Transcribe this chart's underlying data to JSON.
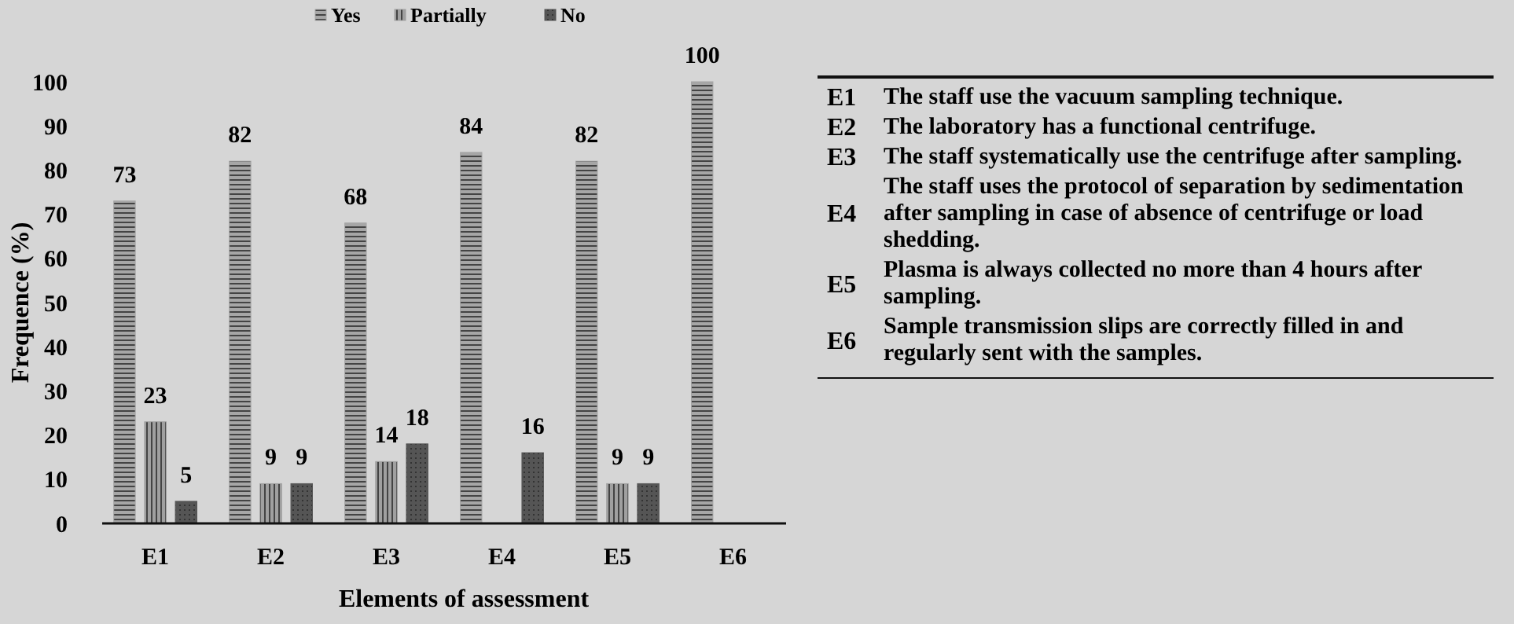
{
  "chart_data": {
    "type": "bar",
    "xlabel": "Elements of assessment",
    "ylabel": "Frequence (%)",
    "categories": [
      "E1",
      "E2",
      "E3",
      "E4",
      "E5",
      "E6"
    ],
    "series": [
      {
        "name": "Yes",
        "color": "#a6a6a6",
        "values": [
          73,
          82,
          68,
          84,
          82,
          100
        ]
      },
      {
        "name": "Partially",
        "color": "#a0a0a0",
        "values": [
          23,
          9,
          14,
          null,
          9,
          null
        ]
      },
      {
        "name": "No",
        "color": "#555555",
        "values": [
          5,
          9,
          18,
          16,
          9,
          null
        ]
      }
    ],
    "ylim": [
      0,
      100
    ],
    "yticks": [
      0,
      10,
      20,
      30,
      40,
      50,
      60,
      70,
      80,
      90,
      100
    ],
    "data_labels": true,
    "legend": "top",
    "grid": false,
    "annotations": [
      "The staff use the vacuum sampling technique.",
      "The laboratory has a functional centrifuge.",
      "The staff systematically use the centrifuge after sampling.",
      "The staff uses the protocol of separation by sedimentation after sampling in case of absence of centrifuge or load shedding.",
      "Plasma is always collected no more than 4 hours after sampling.",
      "Sample transmission slips are correctly filled in and regularly sent with the samples."
    ]
  }
}
